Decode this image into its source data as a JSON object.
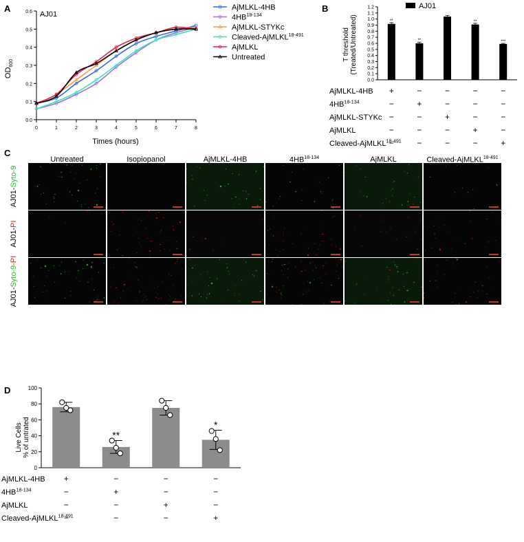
{
  "panels": {
    "a": "A",
    "b": "B",
    "c": "C",
    "d": "D"
  },
  "panel_a": {
    "strain": "AJ01",
    "y_axis_label": "OD",
    "y_axis_subscript": "600",
    "x_axis_label": "Times (hours)",
    "legend": [
      {
        "name": "AjMLKL-4HB",
        "sup": ""
      },
      {
        "name": "4HB",
        "sup": "18-134"
      },
      {
        "name": "AjMLKL-STYKc",
        "sup": ""
      },
      {
        "name": "Cleaved-AjMLKL",
        "sup": "18-491"
      },
      {
        "name": "AjMLKL",
        "sup": ""
      },
      {
        "name": "Untreated",
        "sup": ""
      }
    ]
  },
  "panel_b": {
    "legend": "AJ01",
    "y_axis_label_line1": "T threshold",
    "y_axis_label_line2": "(Treated/Untreated)",
    "row_labels": [
      {
        "name": "AjMLKL-4HB",
        "sup": ""
      },
      {
        "name": "4HB",
        "sup": "18-134"
      },
      {
        "name": "AjMLKL-STYKc",
        "sup": ""
      },
      {
        "name": "AjMLKL",
        "sup": ""
      },
      {
        "name": "Cleaved-AjMLKL",
        "sup": "18-491"
      }
    ],
    "signs": [
      [
        "+",
        "−",
        "−",
        "−",
        "−"
      ],
      [
        "−",
        "+",
        "−",
        "−",
        "−"
      ],
      [
        "−",
        "−",
        "+",
        "−",
        "−"
      ],
      [
        "−",
        "−",
        "−",
        "+",
        "−"
      ],
      [
        "−",
        "−",
        "−",
        "−",
        "+"
      ]
    ]
  },
  "panel_c": {
    "columns": [
      {
        "name": "Untreated",
        "sup": ""
      },
      {
        "name": "Isopiopanol",
        "sup": ""
      },
      {
        "name": "AjMLKL-4HB",
        "sup": ""
      },
      {
        "name": "4HB",
        "sup": "18-134"
      },
      {
        "name": "AjMLKL",
        "sup": ""
      },
      {
        "name": "Cleaved-AjMLKL",
        "sup": "18-491"
      }
    ],
    "rows": [
      {
        "prefix": "AJ01-",
        "stain1": "Syto-9",
        "stain2": ""
      },
      {
        "prefix": "AJ01-",
        "stain1": "PI",
        "stain2": ""
      },
      {
        "prefix": "AJ01-",
        "stain1": "Syto-9",
        "stain2": "-PI"
      }
    ],
    "colors": {
      "green": "#2bbf2b",
      "red": "#e0201b"
    }
  },
  "panel_d": {
    "y_axis_label_line1": "Live Cells",
    "y_axis_label_line2": "% of untrated",
    "row_labels": [
      {
        "name": "AjMLKL-4HB",
        "sup": ""
      },
      {
        "name": "4HB",
        "sup": "18-134"
      },
      {
        "name": "AjMLKL",
        "sup": ""
      },
      {
        "name": "Cleaved-AjMLKL",
        "sup": "18-491"
      }
    ],
    "signs": [
      [
        "+",
        "−",
        "−",
        "−"
      ],
      [
        "−",
        "+",
        "−",
        "−"
      ],
      [
        "−",
        "−",
        "+",
        "−"
      ],
      [
        "−",
        "−",
        "−",
        "+"
      ]
    ]
  },
  "chart_data": [
    {
      "type": "line",
      "title": "AJ01",
      "xlabel": "Times (hours)",
      "ylabel": "OD600",
      "xlim": [
        0,
        8
      ],
      "ylim": [
        0,
        0.6
      ],
      "xticks": [
        "0",
        "1",
        "2",
        "3",
        "4",
        "5",
        "6",
        "7",
        "8"
      ],
      "yticks": [
        "0.0",
        "0.1",
        "0.2",
        "0.3",
        "0.4",
        "0.5",
        "0.6"
      ],
      "x": [
        0,
        1,
        2,
        3,
        4,
        5,
        6,
        7,
        8
      ],
      "series": [
        {
          "name": "AjMLKL-4HB",
          "color": "#2f6fdc",
          "marker": "circle",
          "values": [
            0.09,
            0.12,
            0.2,
            0.27,
            0.35,
            0.42,
            0.46,
            0.49,
            0.52
          ]
        },
        {
          "name": "4HB18-134",
          "color": "#a070e0",
          "marker": "circle",
          "values": [
            0.06,
            0.09,
            0.14,
            0.2,
            0.29,
            0.37,
            0.44,
            0.48,
            0.51
          ]
        },
        {
          "name": "AjMLKL-STYKc",
          "color": "#f0a050",
          "marker": "triangle",
          "values": [
            0.09,
            0.14,
            0.22,
            0.3,
            0.38,
            0.44,
            0.48,
            0.5,
            0.51
          ]
        },
        {
          "name": "Cleaved-AjMLKL18-491",
          "color": "#40e0c0",
          "marker": "circle",
          "values": [
            0.06,
            0.1,
            0.15,
            0.22,
            0.3,
            0.38,
            0.44,
            0.47,
            0.5
          ]
        },
        {
          "name": "AjMLKL",
          "color": "#e0204a",
          "marker": "circle",
          "values": [
            0.09,
            0.14,
            0.25,
            0.32,
            0.4,
            0.45,
            0.48,
            0.51,
            0.5
          ]
        },
        {
          "name": "Untreated",
          "color": "#000000",
          "marker": "triangle",
          "values": [
            0.09,
            0.13,
            0.26,
            0.31,
            0.38,
            0.44,
            0.48,
            0.5,
            0.5
          ]
        }
      ]
    },
    {
      "type": "bar",
      "legend": "AJ01",
      "ylabel": "T threshold (Treated/Untreated)",
      "ylim": [
        0,
        1.2
      ],
      "yticks": [
        "0.0",
        "0.1",
        "0.2",
        "0.3",
        "0.4",
        "0.5",
        "0.6",
        "0.7",
        "0.8",
        "0.9",
        "1.0",
        "1.1",
        "1.2"
      ],
      "categories": [
        "AjMLKL-4HB",
        "4HB18-134",
        "AjMLKL-STYKc",
        "AjMLKL",
        "Cleaved-AjMLKL18-491"
      ],
      "values": [
        0.92,
        0.6,
        1.04,
        0.91,
        0.59
      ],
      "errors": [
        0.02,
        0.02,
        0.02,
        0.02,
        0.01
      ],
      "significance": [
        "**",
        "**",
        "",
        "**",
        "***"
      ]
    },
    {
      "type": "bar",
      "ylabel": "Live Cells % of untrated",
      "ylim": [
        0,
        100
      ],
      "yticks": [
        "0",
        "20",
        "40",
        "60",
        "80",
        "100"
      ],
      "categories": [
        "AjMLKL-4HB",
        "4HB18-134",
        "AjMLKL",
        "Cleaved-AjMLKL18-491"
      ],
      "values": [
        76,
        26,
        75,
        35
      ],
      "errors": [
        6,
        8,
        9,
        12
      ],
      "points": [
        [
          82,
          72,
          75
        ],
        [
          34,
          18,
          25
        ],
        [
          84,
          66,
          75
        ],
        [
          46,
          22,
          36
        ]
      ],
      "significance": [
        "",
        "**",
        "",
        "*"
      ]
    }
  ]
}
